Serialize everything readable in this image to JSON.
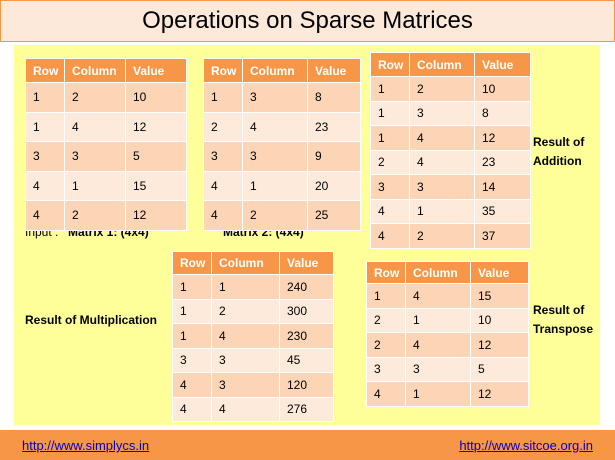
{
  "header": {
    "title": "Operations on Sparse Matrices"
  },
  "labels": {
    "input": "Input :",
    "matrix1": "Matrix 1: (4x4)",
    "matrix2": "Matrix 2: (4x4)",
    "addition": "Result of Addition",
    "multiplication": "Result of Multiplication",
    "transpose": "Result of Transpose"
  },
  "tables": {
    "matrix1": {
      "columns": [
        "Row",
        "Column",
        "Value"
      ],
      "rows": [
        [
          1,
          2,
          10
        ],
        [
          1,
          4,
          12
        ],
        [
          3,
          3,
          5
        ],
        [
          4,
          1,
          15
        ],
        [
          4,
          2,
          12
        ]
      ]
    },
    "matrix2": {
      "columns": [
        "Row",
        "Column",
        "Value"
      ],
      "rows": [
        [
          1,
          3,
          8
        ],
        [
          2,
          4,
          23
        ],
        [
          3,
          3,
          9
        ],
        [
          4,
          1,
          20
        ],
        [
          4,
          2,
          25
        ]
      ]
    },
    "addition": {
      "columns": [
        "Row",
        "Column",
        "Value"
      ],
      "rows": [
        [
          1,
          2,
          10
        ],
        [
          1,
          3,
          8
        ],
        [
          1,
          4,
          12
        ],
        [
          2,
          4,
          23
        ],
        [
          3,
          3,
          14
        ],
        [
          4,
          1,
          35
        ],
        [
          4,
          2,
          37
        ]
      ]
    },
    "multiplication": {
      "columns": [
        "Row",
        "Column",
        "Value"
      ],
      "rows": [
        [
          1,
          1,
          240
        ],
        [
          1,
          2,
          300
        ],
        [
          1,
          4,
          230
        ],
        [
          3,
          3,
          45
        ],
        [
          4,
          3,
          120
        ],
        [
          4,
          4,
          276
        ]
      ]
    },
    "transpose": {
      "columns": [
        "Row",
        "Column",
        "Value"
      ],
      "rows": [
        [
          1,
          4,
          15
        ],
        [
          2,
          1,
          10
        ],
        [
          2,
          4,
          12
        ],
        [
          3,
          3,
          5
        ],
        [
          4,
          1,
          12
        ]
      ]
    }
  },
  "footer": {
    "left_link": "http://www.simplycs.in",
    "right_link": "http://www.sitcoe.org.in"
  }
}
